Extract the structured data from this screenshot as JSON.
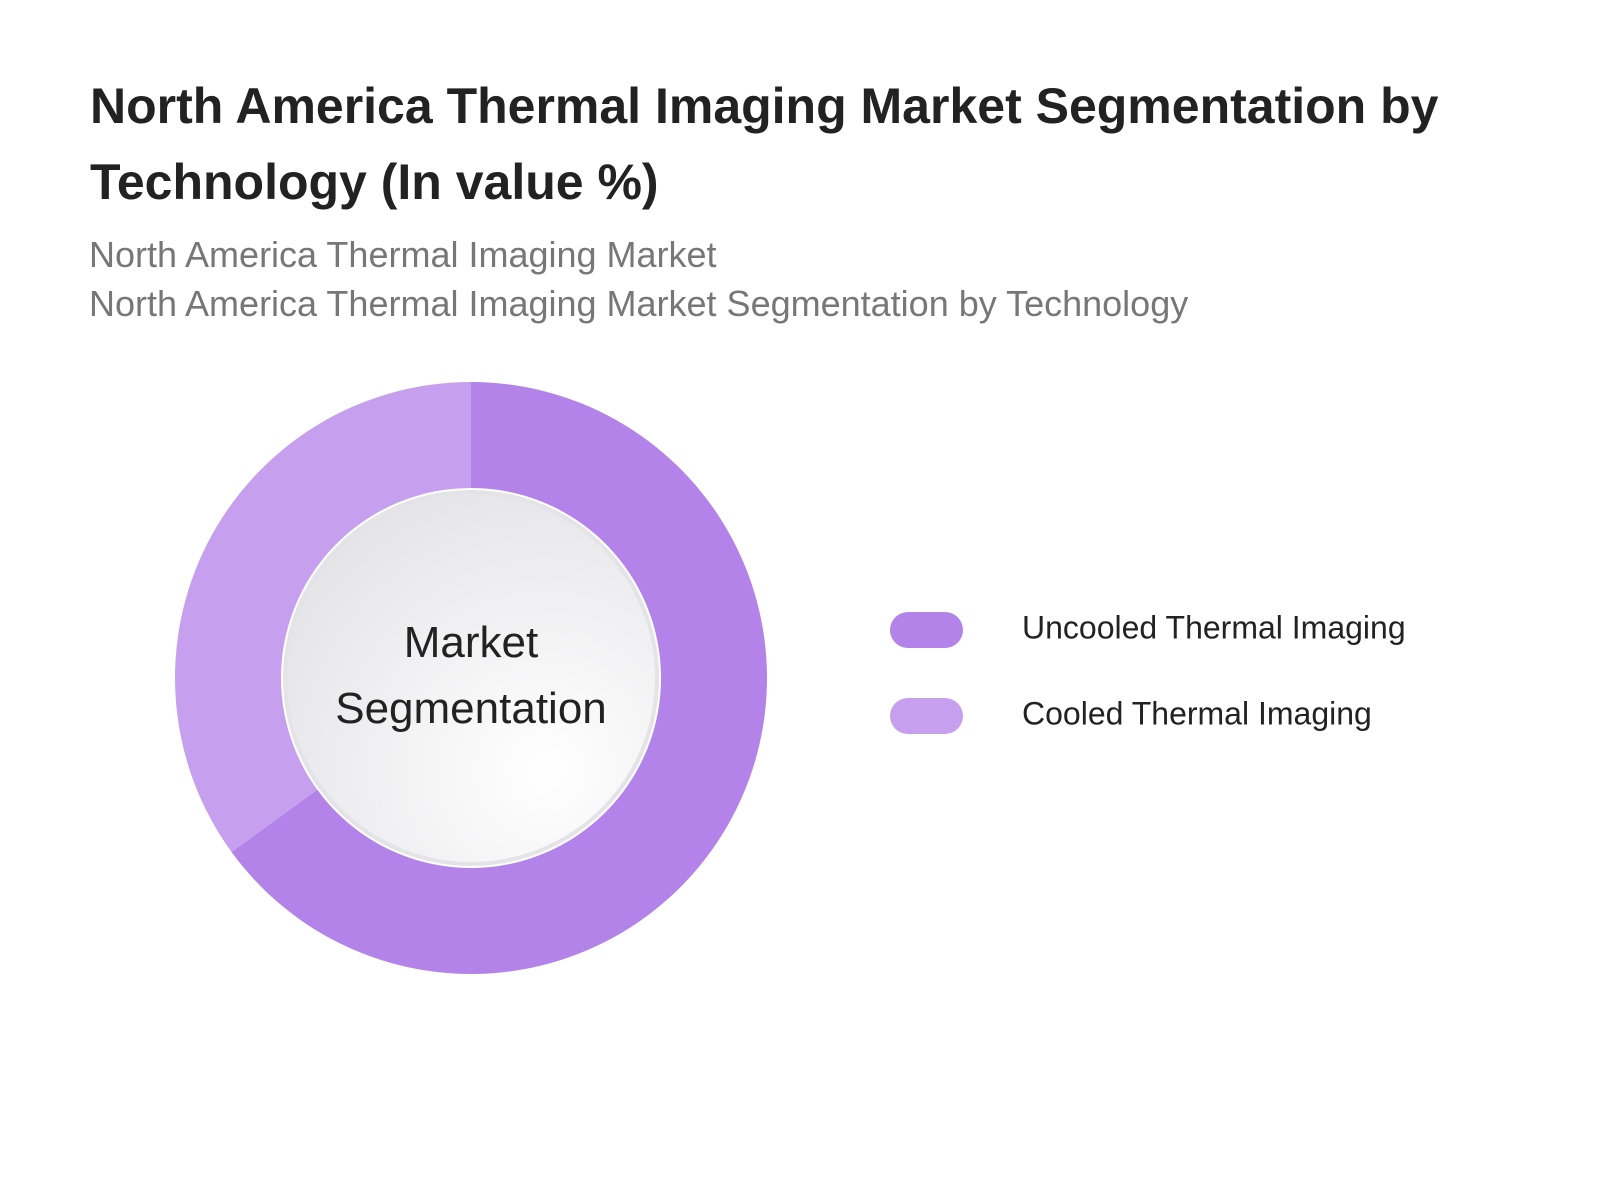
{
  "chart_data": {
    "type": "donut",
    "title": "North America Thermal Imaging Market Segmentation by Technology (In value %)",
    "subtitle": [
      "North America Thermal Imaging Market",
      "North America Thermal Imaging Market Segmentation by Technology"
    ],
    "center_label": "Market Segmentation",
    "categories": [
      "Uncooled Thermal Imaging",
      "Cooled Thermal Imaging"
    ],
    "values": [
      65,
      35
    ],
    "colors": [
      "#b383ea",
      "#c6a0ef"
    ],
    "legend": "right"
  }
}
